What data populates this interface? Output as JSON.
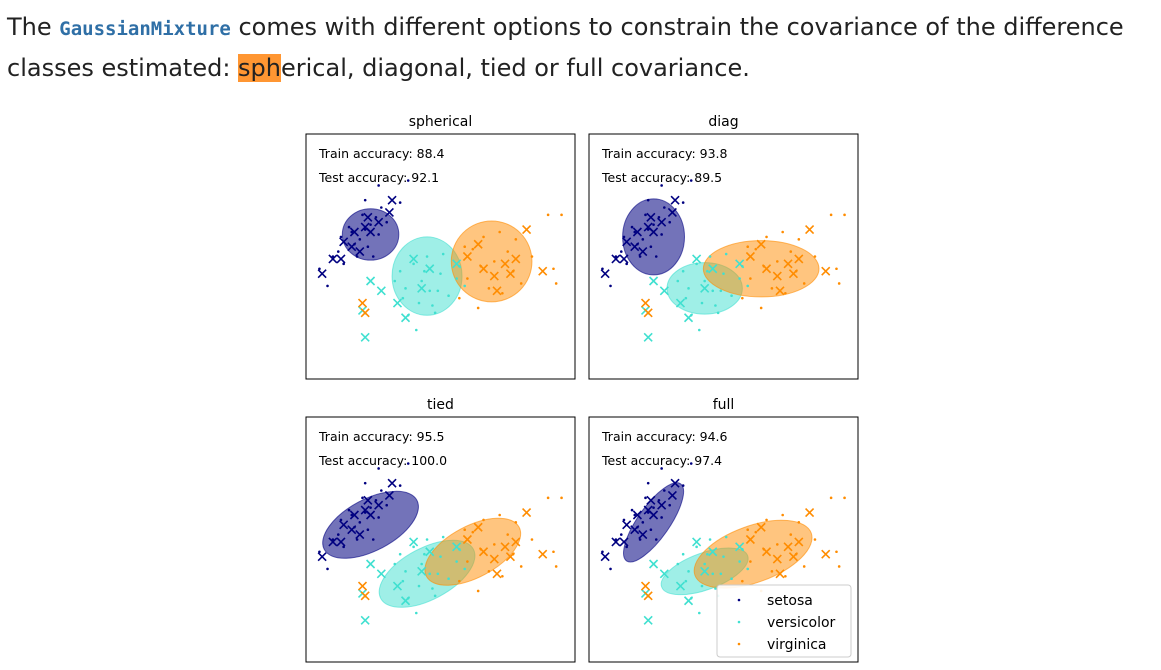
{
  "intro": {
    "prefix": "The ",
    "code": "GaussianMixture",
    "mid": " comes with different options to constrain the covariance of the difference classes estimated: ",
    "highlight": "sph",
    "rest": "erical, diagonal, tied or full covariance."
  },
  "legend": [
    "setosa",
    "versicolor",
    "virginica"
  ],
  "colors": {
    "setosa": "#000080",
    "versicolor": "#40e0d0",
    "virginica": "#ff8c00"
  },
  "chart_data": [
    {
      "type": "scatter",
      "title": "spherical",
      "train_label": "Train accuracy: 88.4",
      "test_label": "Test accuracy: 92.1",
      "train_accuracy": 88.4,
      "test_accuracy": 92.1,
      "ellipses": [
        {
          "class": "setosa",
          "cx": 0.24,
          "cy": 0.59,
          "rx": 0.105,
          "ry": 0.105,
          "angle": 0
        },
        {
          "class": "versicolor",
          "cx": 0.45,
          "cy": 0.42,
          "rx": 0.13,
          "ry": 0.16,
          "angle": 0
        },
        {
          "class": "virginica",
          "cx": 0.69,
          "cy": 0.48,
          "rx": 0.15,
          "ry": 0.165,
          "angle": 0
        }
      ]
    },
    {
      "type": "scatter",
      "title": "diag",
      "train_label": "Train accuracy: 93.8",
      "test_label": "Test accuracy: 89.5",
      "train_accuracy": 93.8,
      "test_accuracy": 89.5,
      "ellipses": [
        {
          "class": "setosa",
          "cx": 0.24,
          "cy": 0.58,
          "rx": 0.115,
          "ry": 0.155,
          "angle": 0
        },
        {
          "class": "versicolor",
          "cx": 0.43,
          "cy": 0.37,
          "rx": 0.14,
          "ry": 0.105,
          "angle": 0
        },
        {
          "class": "virginica",
          "cx": 0.64,
          "cy": 0.45,
          "rx": 0.215,
          "ry": 0.115,
          "angle": 0
        }
      ]
    },
    {
      "type": "scatter",
      "title": "tied",
      "train_label": "Train accuracy: 95.5",
      "test_label": "Test accuracy: 100.0",
      "train_accuracy": 95.5,
      "test_accuracy": 100.0,
      "ellipses": [
        {
          "class": "setosa",
          "cx": 0.24,
          "cy": 0.56,
          "rx": 0.195,
          "ry": 0.105,
          "angle": -28
        },
        {
          "class": "versicolor",
          "cx": 0.45,
          "cy": 0.36,
          "rx": 0.195,
          "ry": 0.105,
          "angle": -28
        },
        {
          "class": "virginica",
          "cx": 0.62,
          "cy": 0.45,
          "rx": 0.195,
          "ry": 0.105,
          "angle": -28
        }
      ]
    },
    {
      "type": "scatter",
      "title": "full",
      "train_label": "Train accuracy: 94.6",
      "test_label": "Test accuracy: 97.4",
      "train_accuracy": 94.6,
      "test_accuracy": 97.4,
      "ellipses": [
        {
          "class": "setosa",
          "cx": 0.24,
          "cy": 0.57,
          "rx": 0.175,
          "ry": 0.065,
          "angle": -55
        },
        {
          "class": "versicolor",
          "cx": 0.43,
          "cy": 0.37,
          "rx": 0.17,
          "ry": 0.075,
          "angle": -20
        },
        {
          "class": "virginica",
          "cx": 0.61,
          "cy": 0.44,
          "rx": 0.23,
          "ry": 0.115,
          "angle": -20
        }
      ]
    }
  ],
  "shared_points": {
    "setosa_train": [
      [
        0.05,
        0.45
      ],
      [
        0.1,
        0.5
      ],
      [
        0.13,
        0.58
      ],
      [
        0.16,
        0.62
      ],
      [
        0.12,
        0.52
      ],
      [
        0.18,
        0.55
      ],
      [
        0.2,
        0.57
      ],
      [
        0.22,
        0.61
      ],
      [
        0.24,
        0.63
      ],
      [
        0.26,
        0.66
      ],
      [
        0.27,
        0.59
      ],
      [
        0.3,
        0.64
      ],
      [
        0.28,
        0.7
      ],
      [
        0.22,
        0.73
      ],
      [
        0.17,
        0.6
      ],
      [
        0.14,
        0.47
      ],
      [
        0.08,
        0.38
      ],
      [
        0.35,
        0.72
      ],
      [
        0.38,
        0.81
      ],
      [
        0.27,
        0.79
      ],
      [
        0.21,
        0.67
      ],
      [
        0.23,
        0.54
      ],
      [
        0.19,
        0.5
      ],
      [
        0.25,
        0.5
      ]
    ],
    "setosa_test": [
      [
        0.06,
        0.43
      ],
      [
        0.1,
        0.49
      ],
      [
        0.14,
        0.56
      ],
      [
        0.18,
        0.6
      ],
      [
        0.22,
        0.62
      ],
      [
        0.24,
        0.6
      ],
      [
        0.27,
        0.64
      ],
      [
        0.2,
        0.52
      ],
      [
        0.17,
        0.54
      ],
      [
        0.31,
        0.68
      ],
      [
        0.32,
        0.73
      ],
      [
        0.23,
        0.66
      ],
      [
        0.13,
        0.49
      ]
    ],
    "versicolor_train": [
      [
        0.33,
        0.4
      ],
      [
        0.36,
        0.33
      ],
      [
        0.4,
        0.47
      ],
      [
        0.43,
        0.4
      ],
      [
        0.46,
        0.36
      ],
      [
        0.5,
        0.43
      ],
      [
        0.38,
        0.26
      ],
      [
        0.42,
        0.31
      ],
      [
        0.48,
        0.27
      ],
      [
        0.53,
        0.34
      ],
      [
        0.56,
        0.41
      ],
      [
        0.35,
        0.44
      ],
      [
        0.45,
        0.5
      ],
      [
        0.51,
        0.51
      ],
      [
        0.57,
        0.46
      ],
      [
        0.41,
        0.2
      ],
      [
        0.49,
        0.36
      ],
      [
        0.37,
        0.37
      ],
      [
        0.59,
        0.38
      ],
      [
        0.44,
        0.44
      ],
      [
        0.47,
        0.3
      ]
    ],
    "versicolor_test": [
      [
        0.28,
        0.36
      ],
      [
        0.34,
        0.31
      ],
      [
        0.4,
        0.49
      ],
      [
        0.46,
        0.45
      ],
      [
        0.37,
        0.25
      ],
      [
        0.22,
        0.17
      ],
      [
        0.56,
        0.47
      ],
      [
        0.43,
        0.37
      ],
      [
        0.21,
        0.28
      ],
      [
        0.24,
        0.4
      ]
    ],
    "virginica_train": [
      [
        0.57,
        0.33
      ],
      [
        0.6,
        0.41
      ],
      [
        0.62,
        0.53
      ],
      [
        0.65,
        0.46
      ],
      [
        0.68,
        0.37
      ],
      [
        0.7,
        0.48
      ],
      [
        0.72,
        0.6
      ],
      [
        0.75,
        0.52
      ],
      [
        0.77,
        0.44
      ],
      [
        0.8,
        0.39
      ],
      [
        0.92,
        0.45
      ],
      [
        0.93,
        0.39
      ],
      [
        0.9,
        0.67
      ],
      [
        0.95,
        0.67
      ],
      [
        0.59,
        0.54
      ],
      [
        0.66,
        0.58
      ],
      [
        0.73,
        0.35
      ],
      [
        0.84,
        0.5
      ],
      [
        0.64,
        0.29
      ],
      [
        0.78,
        0.57
      ]
    ],
    "virginica_test": [
      [
        0.6,
        0.5
      ],
      [
        0.66,
        0.45
      ],
      [
        0.7,
        0.42
      ],
      [
        0.74,
        0.47
      ],
      [
        0.78,
        0.49
      ],
      [
        0.82,
        0.61
      ],
      [
        0.88,
        0.44
      ],
      [
        0.64,
        0.55
      ],
      [
        0.21,
        0.31
      ],
      [
        0.22,
        0.27
      ],
      [
        0.71,
        0.36
      ],
      [
        0.76,
        0.43
      ]
    ]
  }
}
